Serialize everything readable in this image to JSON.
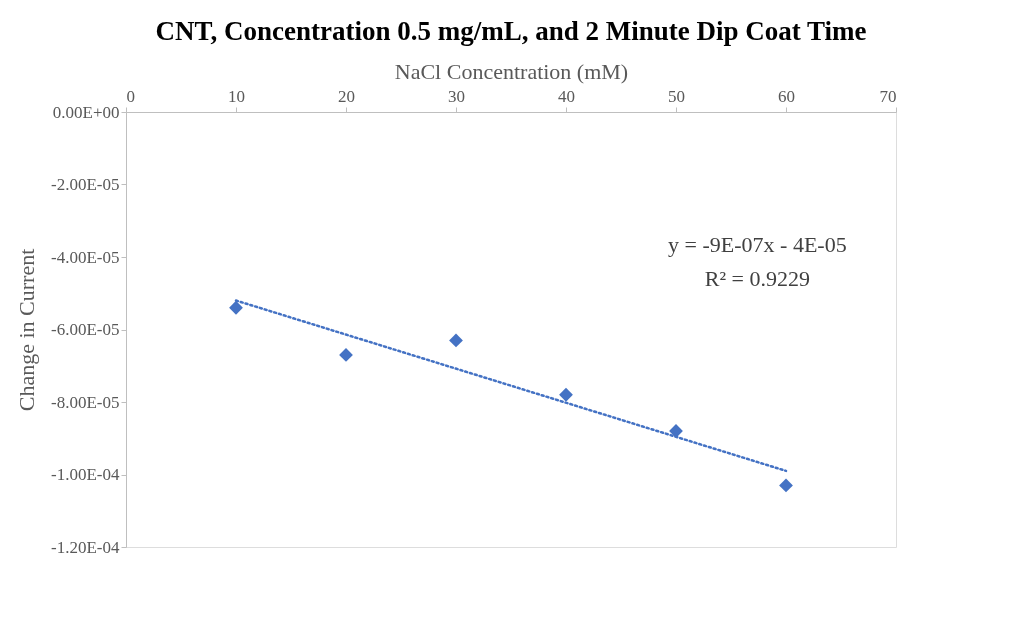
{
  "chart_data": {
    "type": "scatter",
    "title": "CNT, Concentration 0.5 mg/mL, and 2 Minute Dip Coat Time",
    "xlabel": "NaCl Concentration (mM)",
    "ylabel": "Change in Current",
    "x": [
      10,
      20,
      30,
      40,
      50,
      60
    ],
    "series": [
      {
        "type": "scatter",
        "color": "#4472c4",
        "marker": "diamond",
        "values": [
          -5.4e-05,
          -6.7e-05,
          -6.3e-05,
          -7.8e-05,
          -8.8e-05,
          -0.000103
        ]
      },
      {
        "type": "line",
        "color": "#4472c4",
        "line_style": "dotted",
        "marker": "none",
        "x": [
          10,
          60
        ],
        "values": [
          -5.2e-05,
          -9.9e-05
        ]
      }
    ],
    "annotations": [
      "y = -9E-07x - 4E-05",
      "R² = 0.9229"
    ],
    "xlim": [
      0,
      70
    ],
    "xticks": [
      0,
      10,
      20,
      30,
      40,
      50,
      60,
      70
    ],
    "ylim": [
      -0.00012,
      0
    ],
    "yticks": [
      {
        "value": 0,
        "label": "0.00E+00"
      },
      {
        "value": -2e-05,
        "label": "-2.00E-05"
      },
      {
        "value": -4e-05,
        "label": "-4.00E-05"
      },
      {
        "value": -6e-05,
        "label": "-6.00E-05"
      },
      {
        "value": -8e-05,
        "label": "-8.00E-05"
      },
      {
        "value": -0.0001,
        "label": "-1.00E-04"
      },
      {
        "value": -0.00012,
        "label": "-1.20E-04"
      }
    ],
    "grid": false,
    "legend": false
  }
}
